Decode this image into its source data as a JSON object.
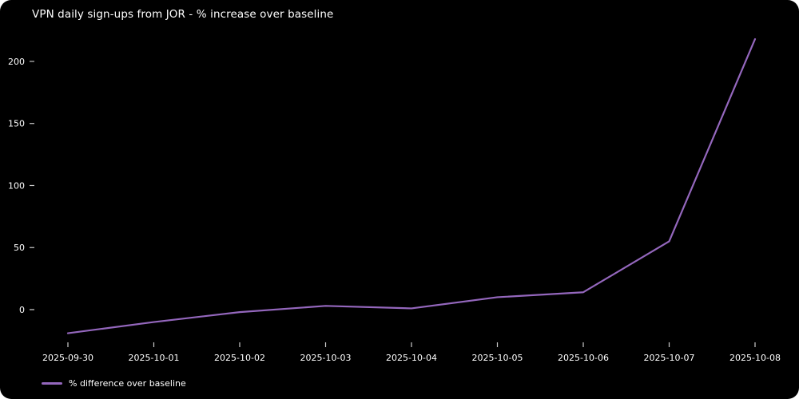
{
  "chart_data": {
    "type": "line",
    "title": "VPN daily sign-ups from JOR - % increase over baseline",
    "categories": [
      "2025-09-30",
      "2025-10-01",
      "2025-10-02",
      "2025-10-03",
      "2025-10-04",
      "2025-10-05",
      "2025-10-06",
      "2025-10-07",
      "2025-10-08"
    ],
    "series": [
      {
        "name": "% difference over baseline",
        "values": [
          -19,
          -10,
          -2,
          3,
          1,
          10,
          14,
          55,
          218
        ],
        "color": "#9467bd"
      }
    ],
    "yticks": [
      0,
      50,
      100,
      150,
      200
    ],
    "ylim": [
      -30,
      230
    ],
    "xlabel": "",
    "ylabel": "",
    "grid": false,
    "legend_position": "bottom-left",
    "background": "#000000",
    "text_color": "#ffffff",
    "tick_color": "#cccccc"
  }
}
